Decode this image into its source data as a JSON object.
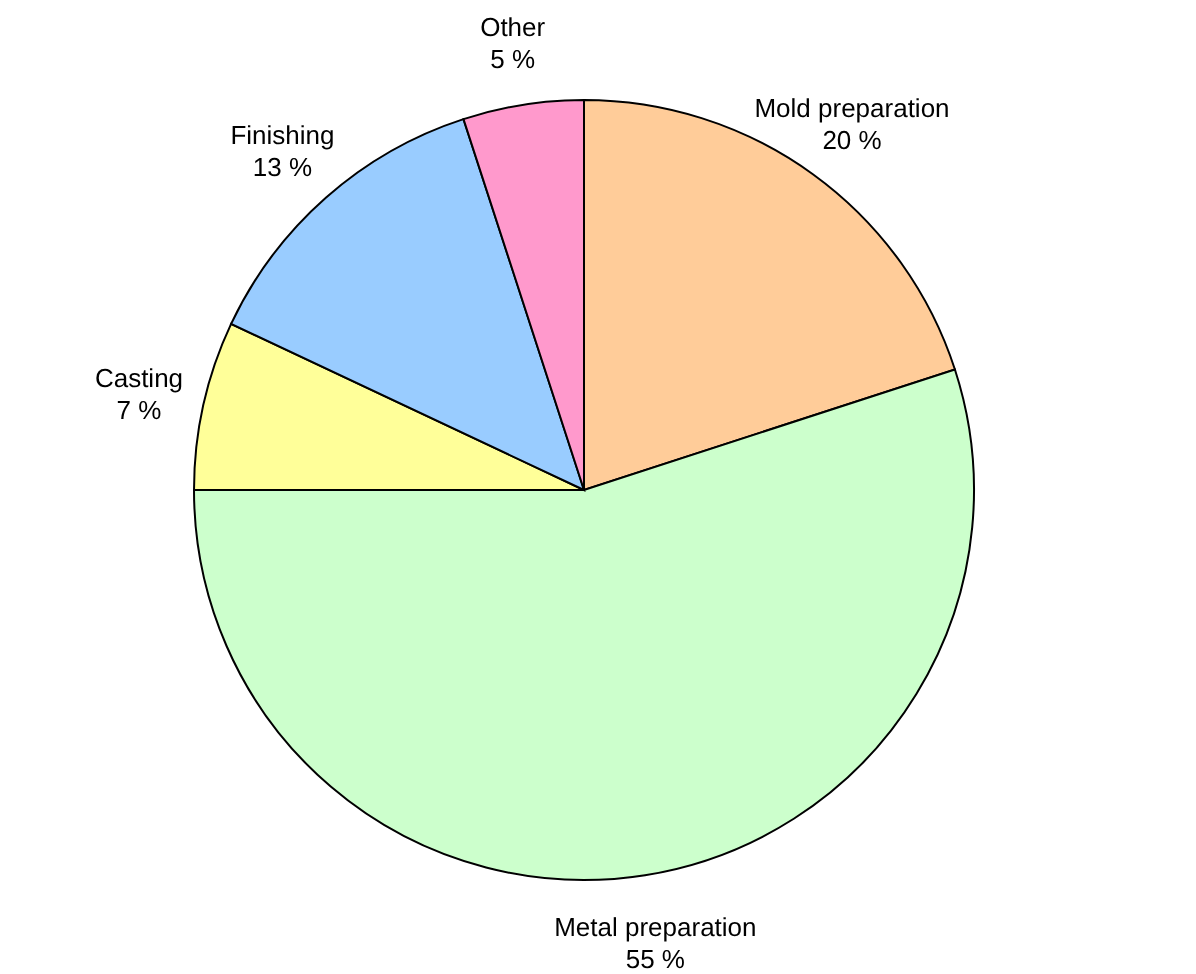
{
  "chart_data": {
    "type": "pie",
    "categories": [
      "Mold preparation",
      "Metal preparation",
      "Casting",
      "Finishing",
      "Other"
    ],
    "values": [
      20,
      55,
      7,
      13,
      5
    ],
    "value_labels": [
      "20 %",
      "55 %",
      "7 %",
      "13 %",
      "5 %"
    ],
    "colors": [
      "#ffcc99",
      "#ccffcc",
      "#ffff99",
      "#99ccff",
      "#ff99cc"
    ]
  }
}
